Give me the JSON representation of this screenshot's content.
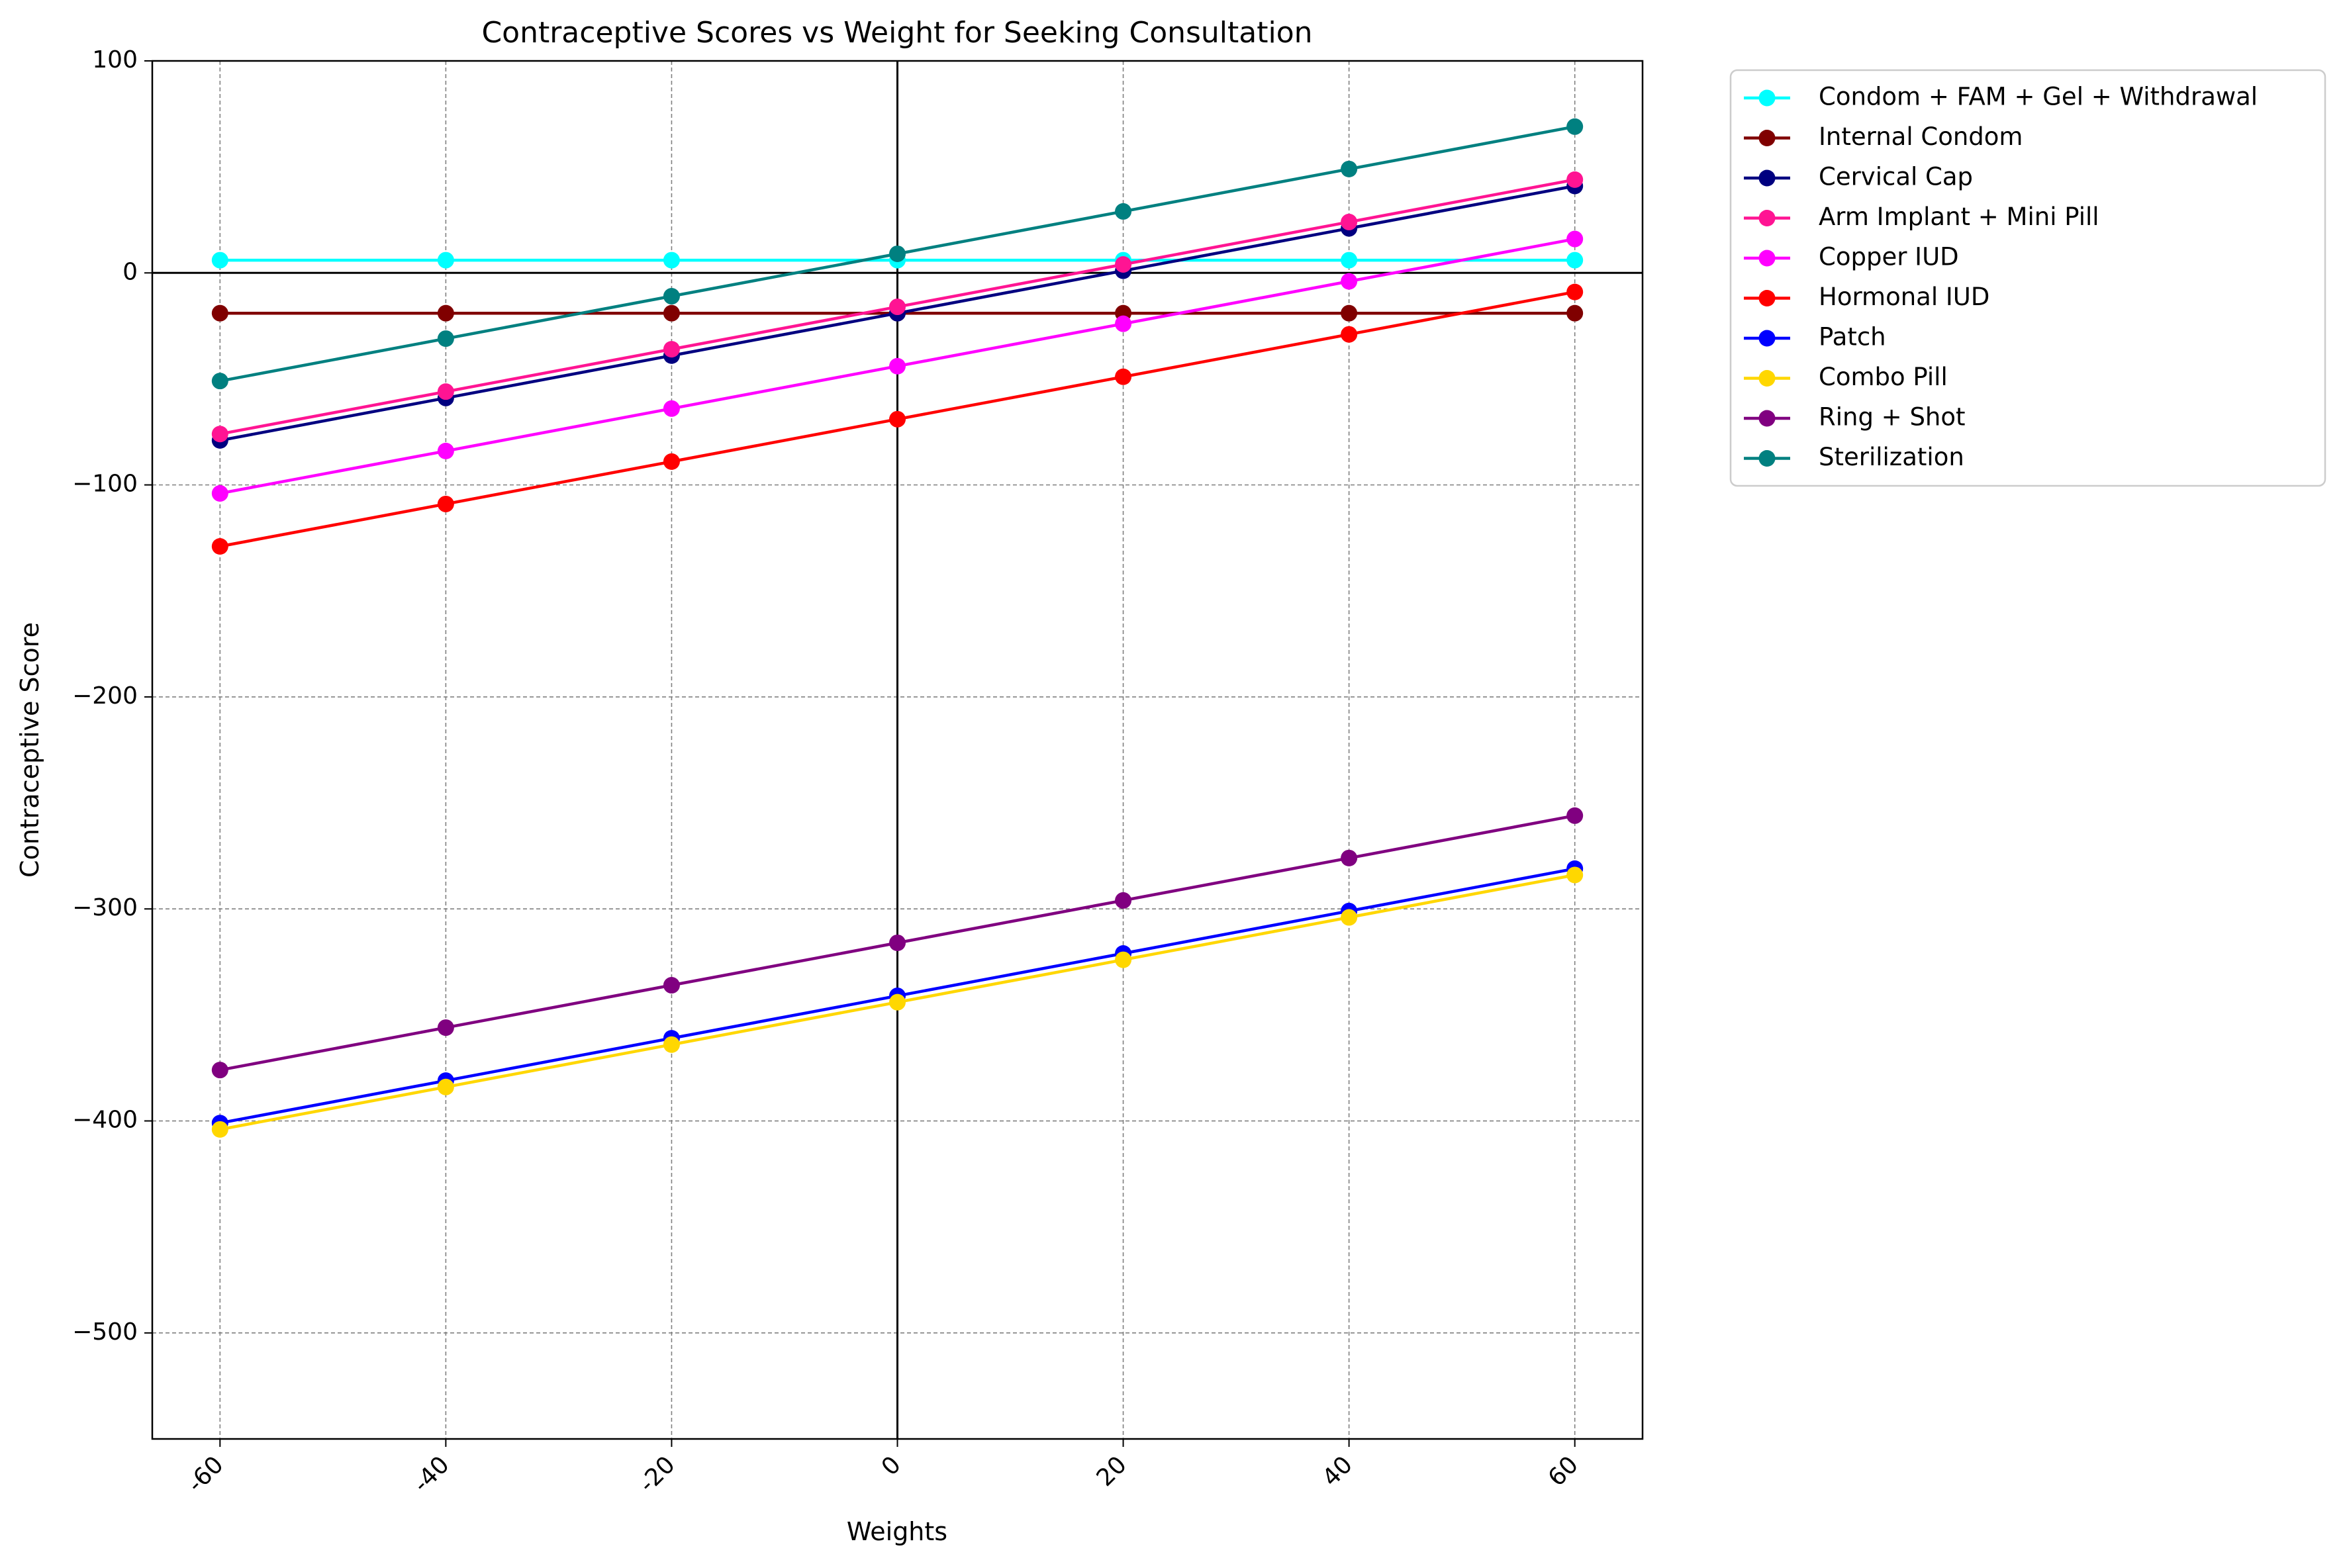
{
  "chart_data": {
    "type": "line",
    "title": "Contraceptive Scores vs Weight for Seeking Consultation",
    "xlabel": "Weights",
    "ylabel": "Contraceptive Score",
    "x": [
      -60,
      -40,
      -20,
      0,
      20,
      40,
      60
    ],
    "x_tick_labels": [
      "-60",
      "-40",
      "-20",
      "0",
      "20",
      "40",
      "60"
    ],
    "xlim": [
      -66,
      66
    ],
    "ylim": [
      -550,
      100
    ],
    "y_ticks": [
      100,
      0,
      -100,
      -200,
      -300,
      -400,
      -500
    ],
    "y_tick_labels": [
      "100",
      "0",
      "−100",
      "−200",
      "−300",
      "−400",
      "−500"
    ],
    "grid": true,
    "grid_style": "dashed",
    "reference_lines": {
      "horizontal_at_y": 0,
      "vertical_at_x": 0
    },
    "legend_position": "outside-top-right",
    "series": [
      {
        "name": "Condom + FAM + Gel + Withdrawal",
        "color": "#00ffff",
        "values": [
          6,
          6,
          6,
          6,
          6,
          6,
          6
        ]
      },
      {
        "name": "Internal Condom",
        "color": "#800000",
        "values": [
          -19,
          -19,
          -19,
          -19,
          -19,
          -19,
          -19
        ]
      },
      {
        "name": "Cervical Cap",
        "color": "#000080",
        "values": [
          -79,
          -59,
          -39,
          -19,
          1,
          21,
          41
        ]
      },
      {
        "name": "Arm Implant + Mini Pill",
        "color": "#ff1493",
        "values": [
          -76,
          -56,
          -36,
          -16,
          4,
          24,
          44
        ]
      },
      {
        "name": "Copper IUD",
        "color": "#ff00ff",
        "values": [
          -104,
          -84,
          -64,
          -44,
          -24,
          -4,
          16
        ]
      },
      {
        "name": "Hormonal IUD",
        "color": "#ff0000",
        "values": [
          -129,
          -109,
          -89,
          -69,
          -49,
          -29,
          -9
        ]
      },
      {
        "name": "Patch",
        "color": "#0000ff",
        "values": [
          -401,
          -381,
          -361,
          -341,
          -321,
          -301,
          -281
        ]
      },
      {
        "name": "Combo Pill",
        "color": "#ffd700",
        "values": [
          -404,
          -384,
          -364,
          -344,
          -324,
          -304,
          -284
        ]
      },
      {
        "name": "Ring + Shot",
        "color": "#800080",
        "values": [
          -376,
          -356,
          -336,
          -316,
          -296,
          -276,
          -256
        ]
      },
      {
        "name": "Sterilization",
        "color": "#008080",
        "values": [
          -51,
          -31,
          -11,
          9,
          29,
          49,
          69
        ]
      }
    ]
  }
}
